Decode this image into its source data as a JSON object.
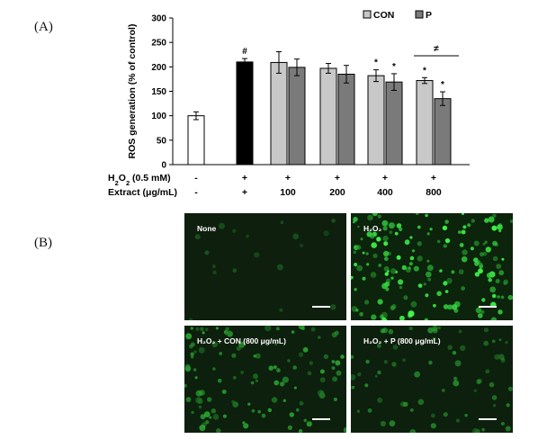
{
  "panel_a_label": "(A)",
  "panel_b_label": "(B)",
  "chart_data": {
    "type": "bar",
    "ylabel": "ROS generation (% of control)",
    "ylim": [
      0,
      300
    ],
    "yticks": [
      "0",
      "50",
      "100",
      "150",
      "200",
      "250",
      "300"
    ],
    "legend_position": "top-right",
    "legend": [
      {
        "name": "CON",
        "color": "#c8c8c8"
      },
      {
        "name": "P",
        "color": "#7a7a7a"
      }
    ],
    "rows": [
      {
        "label_main": "H",
        "label_sub": "2",
        "label_mid": "O",
        "label_sub2": "2",
        "label_tail": " (0.5 mM)",
        "values": [
          "-",
          "+",
          "+",
          "+",
          "+",
          "+"
        ]
      },
      {
        "label_main": "Extract (μg/mL)",
        "values": [
          "-",
          "+",
          "100",
          "200",
          "400",
          "800"
        ]
      }
    ],
    "series": [
      {
        "name": "control",
        "color": "#ffffff",
        "groups": [
          0
        ],
        "values": [
          100
        ],
        "errors": [
          8
        ],
        "annot": [
          ""
        ]
      },
      {
        "name": "H2O2",
        "color": "#000000",
        "groups": [
          1
        ],
        "values": [
          210
        ],
        "errors": [
          7
        ],
        "annot": [
          "#"
        ]
      },
      {
        "name": "CON",
        "color": "#c8c8c8",
        "groups": [
          2,
          3,
          4,
          5
        ],
        "values": [
          209,
          197,
          182,
          172
        ],
        "errors": [
          22,
          10,
          12,
          6
        ],
        "annot": [
          "",
          "",
          "*",
          "*"
        ]
      },
      {
        "name": "P",
        "color": "#7a7a7a",
        "groups": [
          2,
          3,
          4,
          5
        ],
        "values": [
          199,
          185,
          169,
          135
        ],
        "errors": [
          17,
          18,
          17,
          14
        ],
        "annot": [
          "",
          "",
          "*",
          "*"
        ]
      }
    ],
    "bracket_symbol": "≠"
  },
  "micrographs": [
    {
      "caption": "None",
      "color": "#0e1f0e",
      "cells": 18,
      "brightness": 0.25
    },
    {
      "caption": "H₂O₂",
      "color": "#0c230c",
      "cells": 170,
      "brightness": 1.0
    },
    {
      "caption": "H₂O₂ + CON (800 μg/mL)",
      "color": "#0d1f0d",
      "cells": 110,
      "brightness": 0.65
    },
    {
      "caption": "H₂O₂ + P (800 μg/mL)",
      "color": "#0d1f0d",
      "cells": 70,
      "brightness": 0.55
    }
  ]
}
